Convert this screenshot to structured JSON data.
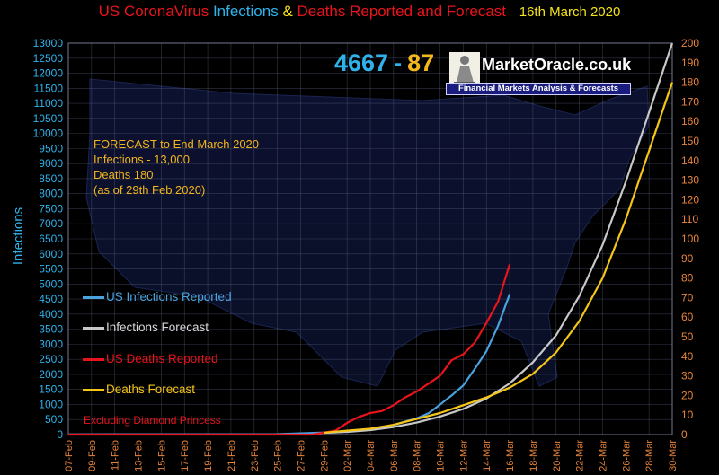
{
  "header": {
    "title_part1": "US CoronaVirus",
    "title_infections": "Infections",
    "title_amp": "&",
    "title_deaths": "Deaths",
    "title_part2": "Reported and Forecast",
    "date": "16th  March 2020"
  },
  "counter": {
    "infections": "4667",
    "separator": "-",
    "deaths": "87"
  },
  "brand": {
    "name": "MarketOracle.co.uk",
    "tagline": "Financial Markets Analysis & Forecasts"
  },
  "forecast_box": {
    "line1": "FORECAST to End March 2020",
    "line2": "Infections - 13,000",
    "line3": "Deaths 180",
    "line4": "(as of  29th Feb  2020)"
  },
  "legend": {
    "inf_reported": "US Infections Reported",
    "inf_forecast": "Infections Forecast",
    "deaths_reported": "US Deaths Reported",
    "deaths_forecast": "Deaths Forecast"
  },
  "note": "Excluding Diamond Princess",
  "colors": {
    "inf_reported": "#4aa3df",
    "inf_forecast": "#c8c8c8",
    "deaths_reported": "#e8141b",
    "deaths_forecast": "#f5c518",
    "left_axis": "#2fb2ea",
    "right_axis": "#e8843a"
  },
  "chart_data": {
    "type": "line",
    "ylabel": "Infections",
    "ylim": [
      0,
      13000
    ],
    "y2lim": [
      0,
      200
    ],
    "yticks": [
      "0",
      "500",
      "1000",
      "1500",
      "2000",
      "2500",
      "3000",
      "3500",
      "4000",
      "4500",
      "5000",
      "5500",
      "6000",
      "6500",
      "7000",
      "7500",
      "8000",
      "8500",
      "9000",
      "9500",
      "10000",
      "10500",
      "11000",
      "11500",
      "12000",
      "12500",
      "13000"
    ],
    "y2ticks": [
      "0",
      "10",
      "20",
      "30",
      "40",
      "50",
      "60",
      "70",
      "80",
      "90",
      "100",
      "110",
      "120",
      "130",
      "140",
      "150",
      "160",
      "170",
      "180",
      "190",
      "200"
    ],
    "xticks": [
      "07-Feb",
      "09-Feb",
      "11-Feb",
      "13-Feb",
      "15-Feb",
      "17-Feb",
      "19-Feb",
      "21-Feb",
      "23-Feb",
      "25-Feb",
      "27-Feb",
      "29-Feb",
      "02-Mar",
      "04-Mar",
      "06-Mar",
      "08-Mar",
      "10-Mar",
      "12-Mar",
      "14-Mar",
      "16-Mar",
      "18-Mar",
      "20-Mar",
      "22-Mar",
      "24-Mar",
      "26-Mar",
      "28-Mar",
      "30-Mar"
    ],
    "grid": true,
    "series": [
      {
        "name": "US Infections Reported",
        "axis": "left",
        "x": [
          "07-Feb",
          "15-Feb",
          "25-Feb",
          "29-Feb",
          "01-Mar",
          "02-Mar",
          "03-Mar",
          "04-Mar",
          "05-Mar",
          "06-Mar",
          "07-Mar",
          "08-Mar",
          "09-Mar",
          "10-Mar",
          "11-Mar",
          "12-Mar",
          "13-Mar",
          "14-Mar",
          "15-Mar",
          "16-Mar"
        ],
        "y": [
          10,
          13,
          15,
          68,
          75,
          100,
          124,
          158,
          221,
          319,
          435,
          541,
          704,
          994,
          1301,
          1630,
          2183,
          2770,
          3613,
          4667
        ]
      },
      {
        "name": "Infections Forecast",
        "axis": "left",
        "x": [
          "29-Feb",
          "02-Mar",
          "04-Mar",
          "06-Mar",
          "08-Mar",
          "10-Mar",
          "12-Mar",
          "14-Mar",
          "16-Mar",
          "18-Mar",
          "20-Mar",
          "22-Mar",
          "24-Mar",
          "26-Mar",
          "28-Mar",
          "30-Mar"
        ],
        "y": [
          60,
          90,
          150,
          250,
          400,
          600,
          850,
          1200,
          1700,
          2400,
          3300,
          4600,
          6300,
          8400,
          10700,
          13000
        ]
      },
      {
        "name": "US Deaths Reported",
        "axis": "right",
        "x": [
          "07-Feb",
          "28-Feb",
          "29-Feb",
          "01-Mar",
          "02-Mar",
          "03-Mar",
          "04-Mar",
          "05-Mar",
          "06-Mar",
          "07-Mar",
          "08-Mar",
          "09-Mar",
          "10-Mar",
          "11-Mar",
          "12-Mar",
          "13-Mar",
          "14-Mar",
          "15-Mar",
          "16-Mar"
        ],
        "y": [
          0,
          0,
          1,
          2,
          6,
          9,
          11,
          12,
          15,
          19,
          22,
          26,
          30,
          38,
          41,
          47,
          57,
          68,
          87
        ]
      },
      {
        "name": "Deaths Forecast",
        "axis": "right",
        "x": [
          "29-Feb",
          "02-Mar",
          "04-Mar",
          "06-Mar",
          "08-Mar",
          "10-Mar",
          "12-Mar",
          "14-Mar",
          "16-Mar",
          "18-Mar",
          "20-Mar",
          "22-Mar",
          "24-Mar",
          "26-Mar",
          "28-Mar",
          "30-Mar"
        ],
        "y": [
          1,
          2,
          3,
          5,
          8,
          11,
          15,
          19,
          24,
          31,
          42,
          58,
          80,
          110,
          145,
          180
        ]
      }
    ]
  }
}
